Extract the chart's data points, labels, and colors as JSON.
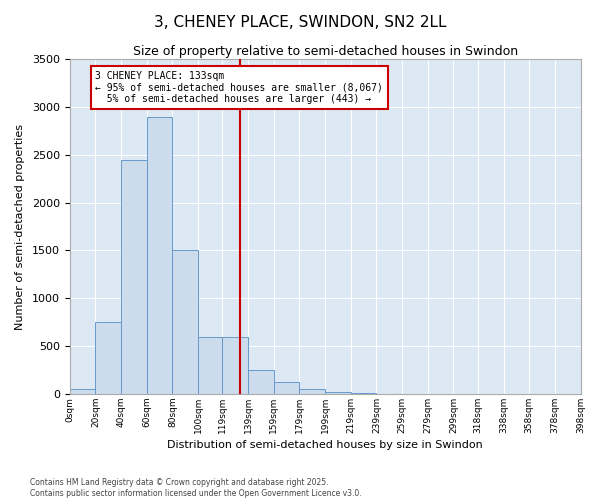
{
  "title": "3, CHENEY PLACE, SWINDON, SN2 2LL",
  "subtitle": "Size of property relative to semi-detached houses in Swindon",
  "xlabel": "Distribution of semi-detached houses by size in Swindon",
  "ylabel": "Number of semi-detached properties",
  "property_size": 133,
  "property_label": "3 CHENEY PLACE: 133sqm",
  "smaller_pct": 95,
  "smaller_count": 8067,
  "larger_pct": 5,
  "larger_count": 443,
  "bin_edges": [
    0,
    20,
    40,
    60,
    80,
    100,
    119,
    139,
    159,
    179,
    199,
    219,
    239,
    259,
    279,
    299,
    318,
    338,
    358,
    378,
    398
  ],
  "bin_labels": [
    "0sqm",
    "20sqm",
    "40sqm",
    "60sqm",
    "80sqm",
    "100sqm",
    "119sqm",
    "139sqm",
    "159sqm",
    "179sqm",
    "199sqm",
    "219sqm",
    "239sqm",
    "259sqm",
    "279sqm",
    "299sqm",
    "318sqm",
    "338sqm",
    "358sqm",
    "378sqm",
    "398sqm"
  ],
  "counts": [
    50,
    750,
    2450,
    2900,
    1500,
    600,
    600,
    250,
    120,
    50,
    20,
    8,
    4,
    2,
    1,
    0,
    0,
    0,
    0,
    0
  ],
  "bar_color": "#ccdcec",
  "bar_edge_color": "#6699cc",
  "vline_color": "#cc0000",
  "annotation_box_color": "#cc0000",
  "background_color": "#dce8f4",
  "ylim": [
    0,
    3500
  ],
  "yticks": [
    0,
    500,
    1000,
    1500,
    2000,
    2500,
    3000,
    3500
  ],
  "footer": "Contains HM Land Registry data © Crown copyright and database right 2025.\nContains public sector information licensed under the Open Government Licence v3.0."
}
